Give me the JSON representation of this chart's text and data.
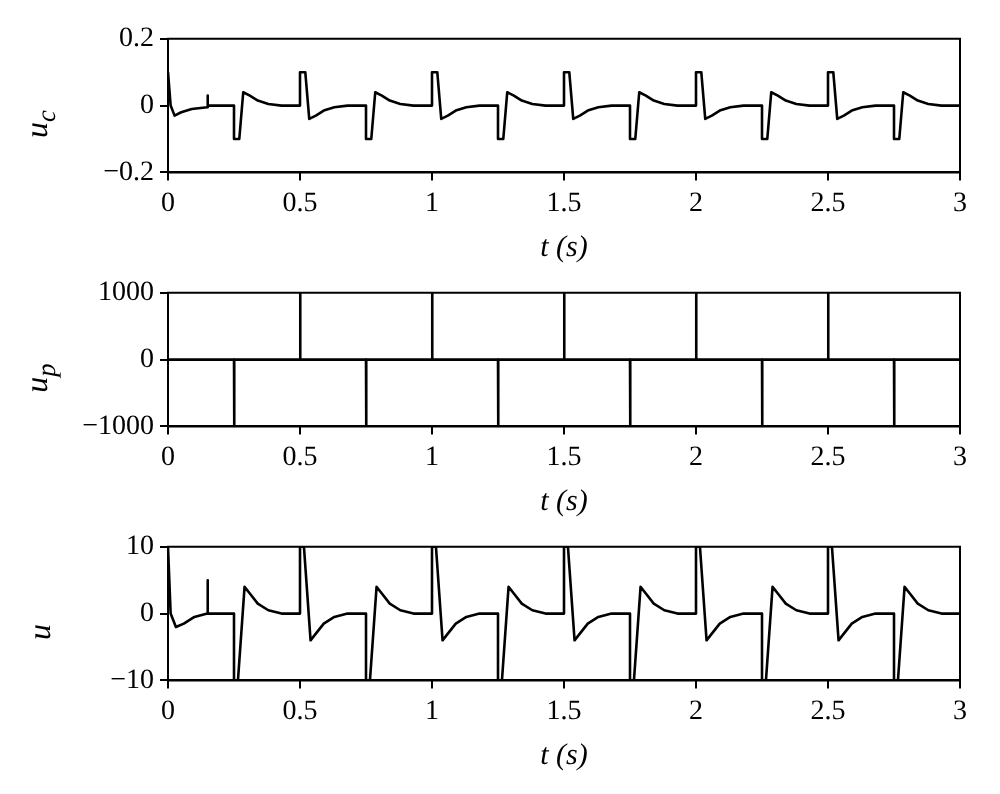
{
  "chart_data": [
    {
      "type": "line",
      "ylabel": "u$_{c}$",
      "xlabel": "t (s)",
      "xlim": [
        0,
        3
      ],
      "xticks": [
        0,
        0.5,
        1,
        1.5,
        2,
        2.5,
        3
      ],
      "ylim": [
        -0.2,
        0.2
      ],
      "yticks": [
        -0.2,
        0,
        0.2
      ],
      "grid": false,
      "legend": false,
      "marker": "none",
      "line_style": "solid",
      "series": [
        {
          "color": "#000000",
          "x": [
            0,
            0.01,
            0.025,
            0.05,
            0.09,
            0.149,
            0.15,
            0.151,
            0.25,
            0.25,
            0.27,
            0.285,
            0.31,
            0.34,
            0.38,
            0.43,
            0.5,
            0.5,
            0.52,
            0.535,
            0.56,
            0.59,
            0.63,
            0.68,
            0.75,
            0.75,
            0.77,
            0.785,
            0.81,
            0.84,
            0.88,
            0.93,
            1,
            1,
            1.02,
            1.035,
            1.06,
            1.09,
            1.13,
            1.18,
            1.25,
            1.25,
            1.27,
            1.285,
            1.31,
            1.34,
            1.38,
            1.43,
            1.5,
            1.5,
            1.52,
            1.535,
            1.56,
            1.59,
            1.63,
            1.68,
            1.75,
            1.75,
            1.77,
            1.785,
            1.81,
            1.84,
            1.88,
            1.93,
            2,
            2,
            2.02,
            2.035,
            2.06,
            2.09,
            2.13,
            2.18,
            2.25,
            2.25,
            2.27,
            2.285,
            2.31,
            2.34,
            2.38,
            2.43,
            2.5,
            2.5,
            2.52,
            2.535,
            2.56,
            2.59,
            2.63,
            2.68,
            2.75,
            2.75,
            2.77,
            2.785,
            2.81,
            2.84,
            2.88,
            2.93,
            3
          ],
          "values": [
            0.1,
            0,
            -0.03,
            -0.02,
            -0.01,
            -0.005,
            0.03,
            0,
            0,
            -0.1,
            -0.1,
            0.04,
            0.03,
            0.015,
            0.005,
            0,
            0,
            0.1,
            0.1,
            -0.04,
            -0.03,
            -0.015,
            -0.005,
            0,
            0,
            -0.1,
            -0.1,
            0.04,
            0.03,
            0.015,
            0.005,
            0,
            0,
            0.1,
            0.1,
            -0.04,
            -0.03,
            -0.015,
            -0.005,
            0,
            0,
            -0.1,
            -0.1,
            0.04,
            0.03,
            0.015,
            0.005,
            0,
            0,
            0.1,
            0.1,
            -0.04,
            -0.03,
            -0.015,
            -0.005,
            0,
            0,
            -0.1,
            -0.1,
            0.04,
            0.03,
            0.015,
            0.005,
            0,
            0,
            0.1,
            0.1,
            -0.04,
            -0.03,
            -0.015,
            -0.005,
            0,
            0,
            -0.1,
            -0.1,
            0.04,
            0.03,
            0.015,
            0.005,
            0,
            0,
            0.1,
            0.1,
            -0.04,
            -0.03,
            -0.015,
            -0.005,
            0,
            0,
            -0.1,
            -0.1,
            0.04,
            0.03,
            0.015,
            0.005,
            0,
            0
          ]
        }
      ]
    },
    {
      "type": "line",
      "ylabel": "u$_{p}$",
      "xlabel": "t (s)",
      "xlim": [
        0,
        3
      ],
      "xticks": [
        0,
        0.5,
        1,
        1.5,
        2,
        2.5,
        3
      ],
      "ylim": [
        -1000,
        1000
      ],
      "yticks": [
        -1000,
        0,
        1000
      ],
      "grid": false,
      "legend": false,
      "marker": "none",
      "line_style": "solid",
      "series": [
        {
          "color": "#000000",
          "x": [
            0,
            0.25,
            0.25,
            0.252,
            0.5,
            0.5,
            0.502,
            0.75,
            0.75,
            0.752,
            1,
            1,
            1.002,
            1.25,
            1.25,
            1.252,
            1.5,
            1.5,
            1.502,
            1.75,
            1.75,
            1.752,
            2,
            2,
            2.002,
            2.25,
            2.25,
            2.252,
            2.5,
            2.5,
            2.502,
            2.75,
            2.75,
            2.752,
            3
          ],
          "values": [
            0,
            0,
            -1000,
            0,
            0,
            1000,
            0,
            0,
            -1000,
            0,
            0,
            1000,
            0,
            0,
            -1000,
            0,
            0,
            1000,
            0,
            0,
            -1000,
            0,
            0,
            1000,
            0,
            0,
            -1000,
            0,
            0,
            1000,
            0,
            0,
            -1000,
            0,
            0
          ]
        }
      ]
    },
    {
      "type": "line",
      "ylabel": "u",
      "xlabel": "t (s)",
      "xlim": [
        0,
        3
      ],
      "xticks": [
        0,
        0.5,
        1,
        1.5,
        2,
        2.5,
        3
      ],
      "ylim": [
        -10,
        10
      ],
      "yticks": [
        -10,
        0,
        10
      ],
      "grid": false,
      "legend": false,
      "marker": "none",
      "line_style": "solid",
      "series": [
        {
          "color": "#000000",
          "x": [
            0,
            0.01,
            0.03,
            0.06,
            0.1,
            0.149,
            0.15,
            0.151,
            0.25,
            0.25,
            0.265,
            0.29,
            0.31,
            0.34,
            0.38,
            0.43,
            0.5,
            0.5,
            0.515,
            0.54,
            0.56,
            0.59,
            0.63,
            0.68,
            0.75,
            0.75,
            0.765,
            0.79,
            0.81,
            0.84,
            0.88,
            0.93,
            1,
            1,
            1.015,
            1.04,
            1.06,
            1.09,
            1.13,
            1.18,
            1.25,
            1.25,
            1.265,
            1.29,
            1.31,
            1.34,
            1.38,
            1.43,
            1.5,
            1.5,
            1.515,
            1.54,
            1.56,
            1.59,
            1.63,
            1.68,
            1.75,
            1.75,
            1.765,
            1.79,
            1.81,
            1.84,
            1.88,
            1.93,
            2,
            2,
            2.015,
            2.04,
            2.06,
            2.09,
            2.13,
            2.18,
            2.25,
            2.25,
            2.265,
            2.29,
            2.31,
            2.34,
            2.38,
            2.43,
            2.5,
            2.5,
            2.515,
            2.54,
            2.56,
            2.59,
            2.63,
            2.68,
            2.75,
            2.75,
            2.765,
            2.79,
            2.81,
            2.84,
            2.88,
            2.93,
            3
          ],
          "values": [
            10,
            0,
            -2,
            -1.5,
            -0.5,
            0,
            5,
            0,
            0,
            -10,
            -10,
            4,
            3,
            1.5,
            0.5,
            0,
            0,
            10,
            10,
            -4,
            -3,
            -1.5,
            -0.5,
            0,
            0,
            -10,
            -10,
            4,
            3,
            1.5,
            0.5,
            0,
            0,
            10,
            10,
            -4,
            -3,
            -1.5,
            -0.5,
            0,
            0,
            -10,
            -10,
            4,
            3,
            1.5,
            0.5,
            0,
            0,
            10,
            10,
            -4,
            -3,
            -1.5,
            -0.5,
            0,
            0,
            -10,
            -10,
            4,
            3,
            1.5,
            0.5,
            0,
            0,
            10,
            10,
            -4,
            -3,
            -1.5,
            -0.5,
            0,
            0,
            -10,
            -10,
            4,
            3,
            1.5,
            0.5,
            0,
            0,
            10,
            10,
            -4,
            -3,
            -1.5,
            -0.5,
            0,
            0,
            -10,
            -10,
            4,
            3,
            1.5,
            0.5,
            0,
            0
          ]
        }
      ]
    }
  ]
}
